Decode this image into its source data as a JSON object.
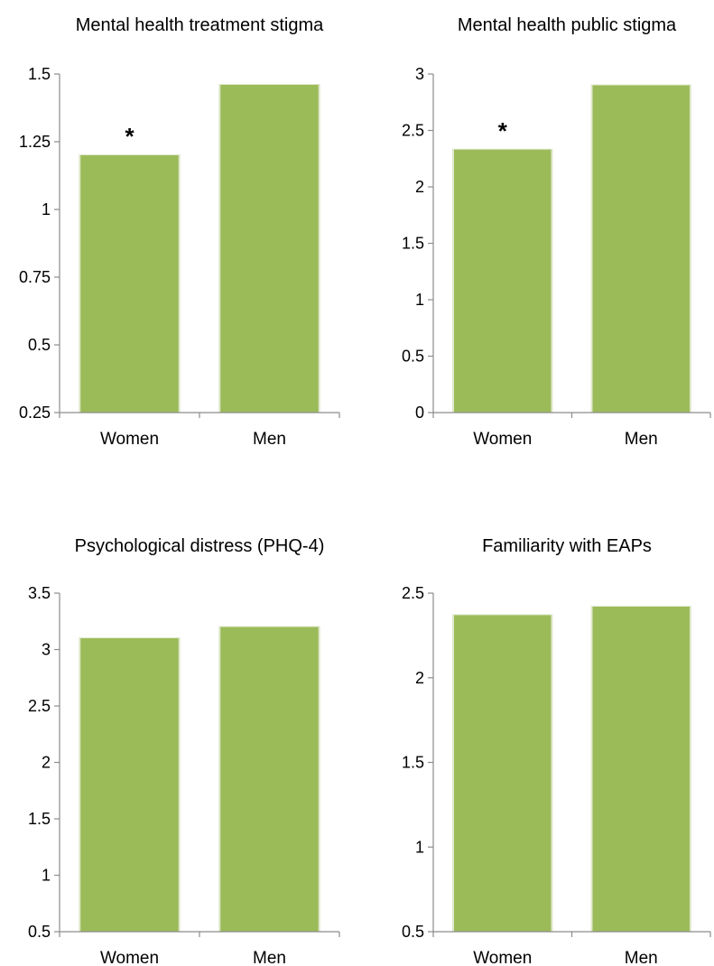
{
  "chart_data": [
    {
      "type": "bar",
      "title": "Mental health treatment stigma",
      "categories": [
        "Women",
        "Men"
      ],
      "values": [
        1.2,
        1.46
      ],
      "ylim": [
        0.25,
        1.5
      ],
      "yticks": [
        "0.25",
        "0.5",
        "0.75",
        "1",
        "1.25",
        "1.5"
      ],
      "annotations": [
        "*",
        ""
      ],
      "color": "#9BBB59",
      "grid": false,
      "legend": "none"
    },
    {
      "type": "bar",
      "title": "Mental health public stigma",
      "categories": [
        "Women",
        "Men"
      ],
      "values": [
        2.33,
        2.9
      ],
      "ylim": [
        0,
        3
      ],
      "yticks": [
        "0",
        "0.5",
        "1",
        "1.5",
        "2",
        "2.5",
        "3"
      ],
      "annotations": [
        "*",
        ""
      ],
      "color": "#9BBB59",
      "grid": false,
      "legend": "none"
    },
    {
      "type": "bar",
      "title": "Psychological distress (PHQ-4)",
      "categories": [
        "Women",
        "Men"
      ],
      "values": [
        3.1,
        3.2
      ],
      "ylim": [
        0.5,
        3.5
      ],
      "yticks": [
        "0.5",
        "1",
        "1.5",
        "2",
        "2.5",
        "3",
        "3.5"
      ],
      "annotations": [
        "",
        ""
      ],
      "color": "#9BBB59",
      "grid": false,
      "legend": "none"
    },
    {
      "type": "bar",
      "title": "Familiarity with EAPs",
      "categories": [
        "Women",
        "Men"
      ],
      "values": [
        2.37,
        2.42
      ],
      "ylim": [
        0.5,
        2.5
      ],
      "yticks": [
        "0.5",
        "1",
        "1.5",
        "2",
        "2.5"
      ],
      "annotations": [
        "",
        ""
      ],
      "color": "#9BBB59",
      "grid": false,
      "legend": "none"
    }
  ]
}
